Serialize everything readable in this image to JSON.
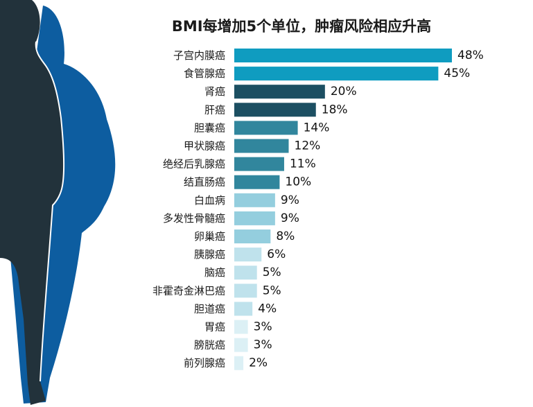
{
  "chart_data": {
    "type": "bar",
    "orientation": "horizontal",
    "title": "BMI每增加5个单位，肿瘤风险相应升高",
    "xlabel": "",
    "ylabel": "",
    "xlim": [
      0,
      48
    ],
    "grid": false,
    "legend": "none",
    "categories": [
      "子宫内膜癌",
      "食管腺癌",
      "肾癌",
      "肝癌",
      "胆囊癌",
      "甲状腺癌",
      "绝经后乳腺癌",
      "结直肠癌",
      "白血病",
      "多发性骨髓癌",
      "卵巢癌",
      "胰腺癌",
      "脑癌",
      "非霍奇金淋巴癌",
      "胆道癌",
      "胃癌",
      "膀胱癌",
      "前列腺癌"
    ],
    "values": [
      48,
      45,
      20,
      18,
      14,
      12,
      11,
      10,
      9,
      9,
      8,
      6,
      5,
      5,
      4,
      3,
      3,
      2
    ],
    "value_labels": [
      "48%",
      "45%",
      "20%",
      "18%",
      "14%",
      "12%",
      "11%",
      "10%",
      "9%",
      "9%",
      "8%",
      "6%",
      "5%",
      "5%",
      "4%",
      "3%",
      "3%",
      "2%"
    ],
    "colors": [
      "#0f9cc0",
      "#0f9cc0",
      "#1c4f62",
      "#1c4f62",
      "#31869d",
      "#31869d",
      "#31869d",
      "#31869d",
      "#94cede",
      "#94cede",
      "#94cede",
      "#bfe2ec",
      "#bfe2ec",
      "#bfe2ec",
      "#bfe2ec",
      "#dcf0f5",
      "#dcf0f5",
      "#dcf0f5"
    ]
  },
  "figure": {
    "front_color": "#22323b",
    "back_color": "#0d5da0"
  }
}
